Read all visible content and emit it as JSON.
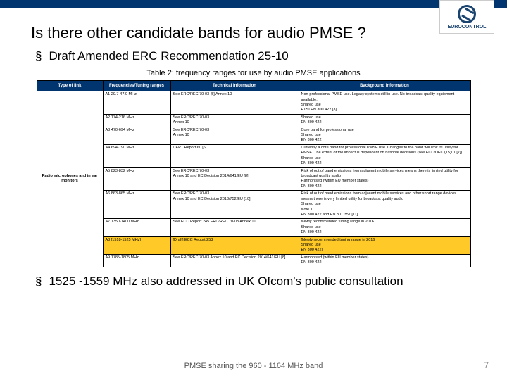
{
  "logo": {
    "text": "EUROCONTROL"
  },
  "title": "Is there other candidate bands for audio PMSE ?",
  "bullet1": "Draft Amended ERC Recommendation 25-10",
  "bullet2": "1525 -1559 MHz also addressed in UK Ofcom's public consultation",
  "caption": "Table 2: frequency ranges for use by audio PMSE applications",
  "cols": [
    "Type of link",
    "Frequencies/Tuning ranges",
    "Technical Information",
    "Background Information"
  ],
  "typecol": "Radio microphones and in ear monitors",
  "rows": [
    {
      "freq": "A1  29.7-47.0 MHz",
      "tech": "See ERC/REC 70-03 [5]  Annex 10",
      "bg": "Non-professional PMSE use. Legacy systems still in use. No broadcast quality equipment available.\nShared use\nETSI EN 300 422 [3]"
    },
    {
      "freq": "A2  174-216 MHz",
      "tech": "See ERC/REC 70-03\nAnnex 10",
      "bg": "Shared use\nEN 300 422"
    },
    {
      "freq": "A3  470-694 MHz",
      "tech": "See ERC/REC 70-03\nAnnex 10",
      "bg": "Core band for professional use\nShared use\nEN 300 422"
    },
    {
      "freq": "A4  694-790 MHz",
      "tech": "CEPT Report 60 [6]",
      "bg": "Currently a core band for professional PMSE use. Changes to the band will limit its utility for PMSE. The extent of the impact is dependent on national decisions (see ECC/DEC (15)01 [7])\nShared use\nEN 300 422"
    },
    {
      "freq": "A5  823-832 MHz",
      "tech": "See ERC/REC 70-03\nAnnex 10 and EC Decision 2014/641/EU [8]",
      "bg": "Risk of out of band emissions from adjacent mobile services means there is limited utility for broadcast quality audio\nHarmonised (within EU member states)\nEN 300 422"
    },
    {
      "freq": "A6  863-865 MHz",
      "tech": "See ERC/REC 70-03\nAnnex 10 and EC Decision 2013/752/EU [10]",
      "bg": "Risk of out of band emissions from adjacent mobile services and other short range devices means there is very limited utility for broadcast quality audio\nShared use\nNote 1\nEN 300 422 and EN 301 357 [11]"
    },
    {
      "freq": "A7  1350-1400 MHz",
      "tech": "See ECC Report 245 ERC/REC 70-03  Annex 10",
      "bg": "Newly recommended tuning range in 2016\nShared use\nEN 300 422"
    },
    {
      "freq": "A8  [1518-1525 MHz]",
      "tech": "[Draft] ECC Report 253",
      "bg": "[Newly recommended tuning range in 2016\nShared use\nEN 300 422]",
      "yellow": true
    },
    {
      "freq": "A9  1785-1805 MHz",
      "tech": "See ERC/REC 70-03 Annex 10 and EC Decision 2014/641/EU [8]",
      "bg": "Harmonised (within EU member states)\nEN 300 422"
    }
  ],
  "footer": "PMSE sharing the 960 - 1164 MHz band",
  "page": "7"
}
